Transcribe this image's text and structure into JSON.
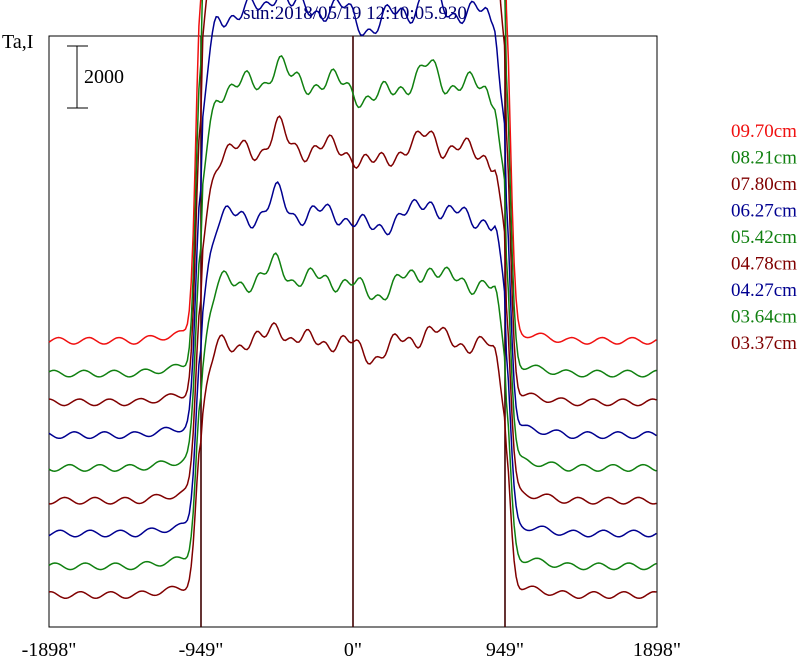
{
  "chart_data": {
    "type": "line",
    "title": "sun:2018/05/19 12:10:05.930",
    "ylabel": "Ta,I",
    "xlabel": "",
    "xlim": [
      -1898,
      1898
    ],
    "x_ticks": [
      {
        "value": -1898,
        "label": "-1898\""
      },
      {
        "value": -949,
        "label": "-949\""
      },
      {
        "value": 0,
        "label": "0\""
      },
      {
        "value": 949,
        "label": "949\""
      },
      {
        "value": 1898,
        "label": "1898\""
      }
    ],
    "vertical_lines": [
      -949,
      0,
      949
    ],
    "scale_bar": {
      "value": 2000,
      "label": "2000"
    },
    "grid": false,
    "legend_position": "right",
    "colors": {
      "red": "#f01010",
      "green": "#108010",
      "maroon": "#800000",
      "navy": "#000090",
      "axes": "#000000",
      "vline": "#400000",
      "title": "#000070"
    },
    "series": [
      {
        "name": "09.70cm",
        "color": "#f01010",
        "baseline": 0.31,
        "solar_level": 0.74,
        "limb_spike": 0.06
      },
      {
        "name": "08.21cm",
        "color": "#108010",
        "baseline": 0.27,
        "solar_level": 0.66,
        "limb_spike": 0.055
      },
      {
        "name": "07.80cm",
        "color": "#800000",
        "baseline": 0.235,
        "solar_level": 0.6,
        "limb_spike": 0.04
      },
      {
        "name": "06.27cm",
        "color": "#000090",
        "baseline": 0.195,
        "solar_level": 0.52,
        "limb_spike": 0.03
      },
      {
        "name": "05.42cm",
        "color": "#108010",
        "baseline": 0.155,
        "solar_level": 0.47,
        "limb_spike": 0.025
      },
      {
        "name": "04.78cm",
        "color": "#800000",
        "baseline": 0.115,
        "solar_level": 0.43,
        "limb_spike": 0.02
      },
      {
        "name": "04.27cm",
        "color": "#000090",
        "baseline": 0.075,
        "solar_level": 0.39,
        "limb_spike": 0.015
      },
      {
        "name": "03.64cm",
        "color": "#108010",
        "baseline": 0.035,
        "solar_level": 0.35,
        "limb_spike": 0.01
      },
      {
        "name": "03.37cm",
        "color": "#800000",
        "baseline": 0.0,
        "solar_level": 0.31,
        "limb_spike": 0.008
      }
    ]
  }
}
